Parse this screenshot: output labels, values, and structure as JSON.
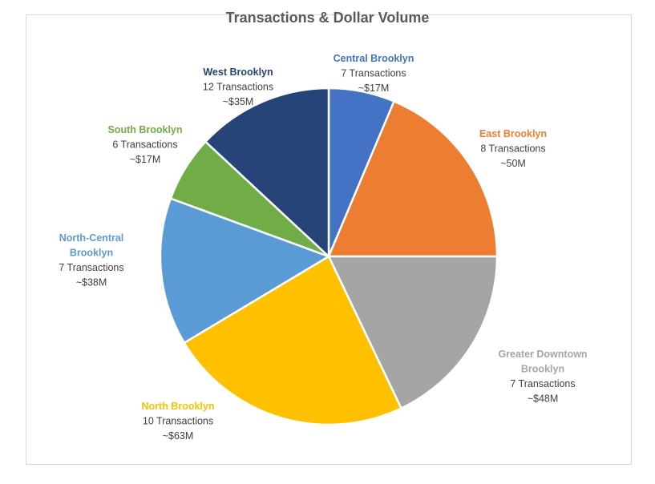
{
  "chart_data": {
    "type": "pie",
    "title": "Transactions & Dollar Volume",
    "slices": [
      {
        "name": "Central Brooklyn",
        "lines": [
          "Central Brooklyn"
        ],
        "transactions": "7 Transactions",
        "volume": "~$17M",
        "value": 17,
        "color": "#4472c4"
      },
      {
        "name": "East Brooklyn",
        "lines": [
          "East Brooklyn"
        ],
        "transactions": "8 Transactions",
        "volume": "~50M",
        "value": 50,
        "color": "#ed7d31"
      },
      {
        "name": "Greater Downtown Brooklyn",
        "lines": [
          "Greater Downtown",
          "Brooklyn"
        ],
        "transactions": "7 Transactions",
        "volume": "~$48M",
        "value": 48,
        "color": "#a5a5a5"
      },
      {
        "name": "North Brooklyn",
        "lines": [
          "North Brooklyn"
        ],
        "transactions": "10 Transactions",
        "volume": "~$63M",
        "value": 63,
        "color": "#ffc000"
      },
      {
        "name": "North-Central Brooklyn",
        "lines": [
          "North-Central",
          "Brooklyn"
        ],
        "transactions": "7 Transactions",
        "volume": "~$38M",
        "value": 38,
        "color": "#5b9bd5"
      },
      {
        "name": "South Brooklyn",
        "lines": [
          "South Brooklyn"
        ],
        "transactions": "6 Transactions",
        "volume": "~$17M",
        "value": 17,
        "color": "#70ad47"
      },
      {
        "name": "West Brooklyn",
        "lines": [
          "West Brooklyn"
        ],
        "transactions": "12 Transactions",
        "volume": "~$35M",
        "value": 35,
        "color": "#264478"
      }
    ]
  }
}
